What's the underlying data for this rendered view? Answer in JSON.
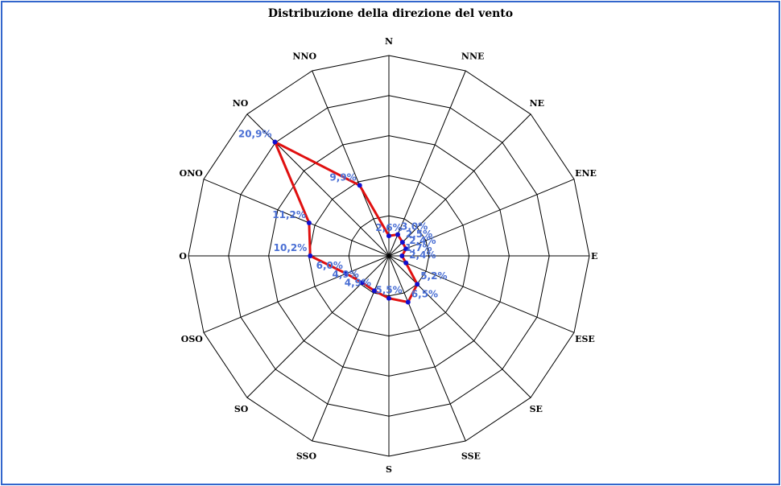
{
  "chart_data": {
    "type": "radar",
    "title": "Distribuzione della direzione del vento",
    "categories": [
      "N",
      "NNE",
      "NE",
      "ENE",
      "E",
      "ESE",
      "SE",
      "SSE",
      "S",
      "SSO",
      "SO",
      "OSO",
      "O",
      "ONO",
      "NO",
      "NNO"
    ],
    "values": [
      2.6,
      3.0,
      2.5,
      2.4,
      1.7,
      2.4,
      5.2,
      6.5,
      5.5,
      4.9,
      4.9,
      6.0,
      10.2,
      11.2,
      20.9,
      9.9
    ],
    "value_labels": [
      "2,6%",
      "3,0%",
      "2,5%",
      "2,4%",
      "1,7%",
      "2,4%",
      "5,2%",
      "6,5%",
      "5,5%",
      "4,9%",
      "4,9%",
      "6,0%",
      "10,2%",
      "11,2%",
      "20,9%",
      "9,9%"
    ],
    "rmax": 26,
    "rings": 5,
    "grid": true,
    "line_color": "#e01010",
    "marker_color": "#1010d0",
    "label_color": "#4a6fd4",
    "grid_color": "#000000"
  }
}
